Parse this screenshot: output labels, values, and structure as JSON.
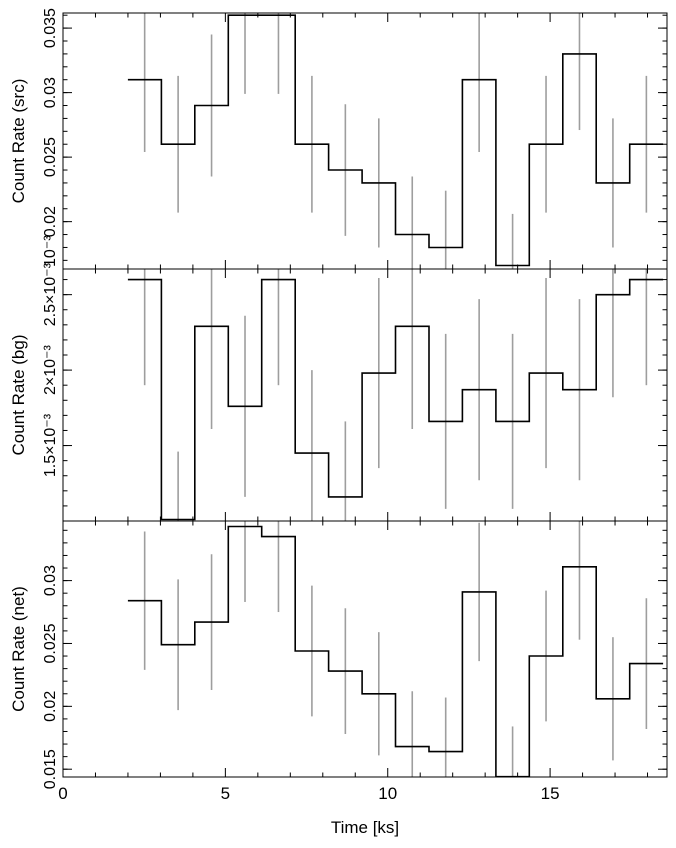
{
  "chart_data": [
    {
      "type": "line",
      "step": true,
      "ylabel": "Count Rate (src)",
      "xlim": [
        0,
        18.6
      ],
      "ylim": [
        0.01633,
        0.03617
      ],
      "yticks": [
        0.02,
        0.025,
        0.03,
        0.035
      ],
      "yticklabels": [
        "0.02",
        "0.025",
        "0.03",
        "0.035"
      ],
      "offset_label": "10⁻³",
      "bin_edges": [
        2.0,
        3.03,
        4.06,
        5.09,
        6.12,
        7.15,
        8.18,
        9.21,
        10.24,
        11.27,
        12.3,
        13.33,
        14.36,
        15.39,
        16.42,
        17.45,
        18.48
      ],
      "values": [
        0.031,
        0.026,
        0.029,
        0.036,
        0.036,
        0.026,
        0.024,
        0.023,
        0.019,
        0.018,
        0.031,
        0.0166,
        0.026,
        0.033,
        0.023,
        0.026
      ],
      "errors": [
        0.0056,
        0.0053,
        0.0055,
        0.0061,
        0.0061,
        0.0053,
        0.0051,
        0.005,
        0.0045,
        0.0044,
        0.0056,
        0.004,
        0.0053,
        0.0059,
        0.005,
        0.0053
      ]
    },
    {
      "type": "line",
      "step": true,
      "ylabel": "Count Rate (bg)",
      "xlim": [
        0,
        18.6
      ],
      "ylim": [
        0.001,
        0.00267
      ],
      "yticks": [
        0.0015,
        0.002,
        0.0025
      ],
      "yticklabels": [
        "1.5×10⁻³",
        "2×10⁻³",
        "2.5×10⁻³"
      ],
      "bin_edges": [
        2.0,
        3.03,
        4.06,
        5.09,
        6.12,
        7.15,
        8.18,
        9.21,
        10.24,
        11.27,
        12.3,
        13.33,
        14.36,
        15.39,
        16.42,
        17.45,
        18.48
      ],
      "values": [
        0.0026,
        0.00101,
        0.00229,
        0.00176,
        0.0026,
        0.00145,
        0.00116,
        0.00198,
        0.00229,
        0.00166,
        0.00187,
        0.00166,
        0.00198,
        0.00187,
        0.0025,
        0.0026
      ],
      "errors": [
        0.0007,
        0.00045,
        0.00068,
        0.0006,
        0.0007,
        0.00055,
        0.0005,
        0.00063,
        0.00068,
        0.00058,
        0.0006,
        0.00058,
        0.00063,
        0.0006,
        0.00068,
        0.0007
      ]
    },
    {
      "type": "line",
      "step": true,
      "ylabel": "Count Rate (net)",
      "xlabel": "Time [ks]",
      "xlim": [
        0,
        18.6
      ],
      "xticks": [
        0,
        5,
        10,
        15
      ],
      "xticklabels": [
        "0",
        "5",
        "10",
        "15"
      ],
      "ylim": [
        0.01438,
        0.03474
      ],
      "yticks": [
        0.015,
        0.02,
        0.025,
        0.03
      ],
      "yticklabels": [
        "0.015",
        "0.02",
        "0.025",
        "0.03"
      ],
      "bin_edges": [
        2.0,
        3.03,
        4.06,
        5.09,
        6.12,
        7.15,
        8.18,
        9.21,
        10.24,
        11.27,
        12.3,
        13.33,
        14.36,
        15.39,
        16.42,
        17.45,
        18.48
      ],
      "values": [
        0.0284,
        0.0249,
        0.0267,
        0.0343,
        0.0335,
        0.0244,
        0.0228,
        0.021,
        0.0168,
        0.0164,
        0.0291,
        0.0144,
        0.024,
        0.0311,
        0.0206,
        0.0234
      ],
      "errors": [
        0.0055,
        0.0052,
        0.0054,
        0.006,
        0.006,
        0.0052,
        0.005,
        0.0049,
        0.0044,
        0.0043,
        0.0055,
        0.004,
        0.0052,
        0.0058,
        0.0049,
        0.0052
      ]
    }
  ]
}
